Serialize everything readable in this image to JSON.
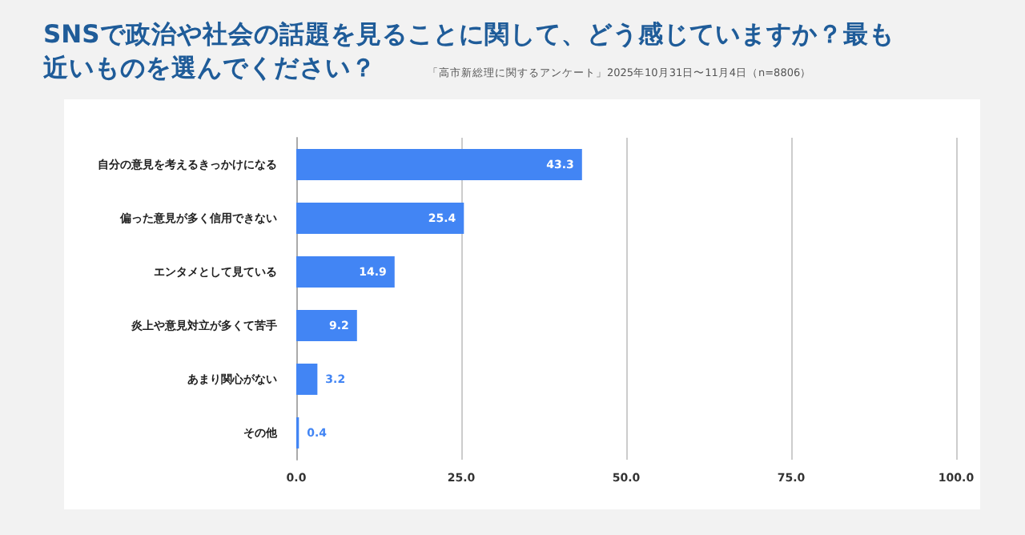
{
  "chart_data": {
    "type": "bar",
    "orientation": "horizontal",
    "title": "SNSで政治や社会の話題を見ることに関して、どう感じていますか？最も近いものを選んでください？",
    "subtitle": "「高市新総理に関するアンケート」2025年10月31日〜11月4日（n=8806）",
    "categories": [
      "自分の意見を考えるきっかけになる",
      "偏った意見が多く信用できない",
      "エンタメとして見ている",
      "炎上や意見対立が多くて苦手",
      "あまり関心がない",
      "その他"
    ],
    "values": [
      43.3,
      25.4,
      14.9,
      9.2,
      3.2,
      0.4
    ],
    "color": "#4285f4",
    "xlim": [
      0,
      100
    ],
    "xticks": [
      {
        "value": 0,
        "label": "0.0"
      },
      {
        "value": 25,
        "label": "25.0"
      },
      {
        "value": 50,
        "label": "50.0"
      },
      {
        "value": 75,
        "label": "75.0"
      },
      {
        "value": 100,
        "label": "100.0"
      }
    ],
    "grid": "x",
    "data_labels": true
  }
}
